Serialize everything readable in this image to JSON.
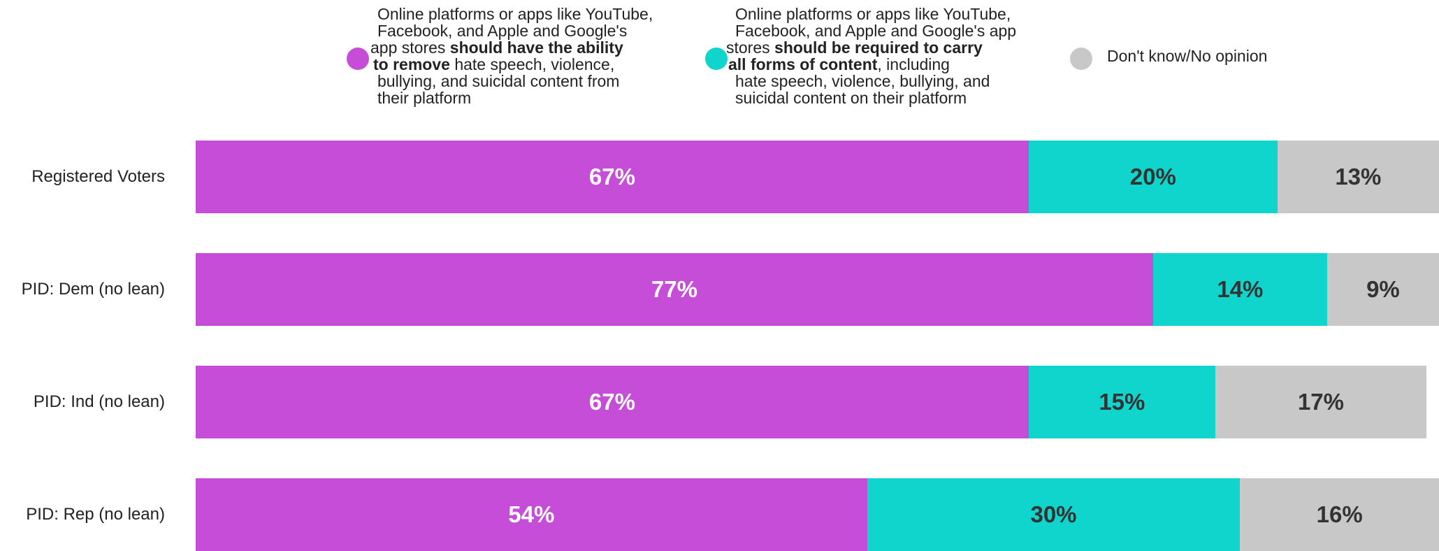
{
  "colors": {
    "remove": "#C54DD8",
    "carry": "#0FD5CC",
    "dk": "#C8C8C8"
  },
  "legend": {
    "remove": {
      "lines": [
        {
          "pre": "Online platforms or apps like YouTube,",
          "bold": "",
          "post": ""
        },
        {
          "pre": "Facebook, and Apple and Google's",
          "bold": "",
          "post": ""
        },
        {
          "pre": "app stores ",
          "bold": "should have the ability",
          "post": ""
        },
        {
          "pre": "",
          "bold": "to remove",
          "post": " hate speech, violence,"
        },
        {
          "pre": "bullying, and suicidal content from",
          "bold": "",
          "post": ""
        },
        {
          "pre": "their platform",
          "bold": "",
          "post": ""
        }
      ]
    },
    "carry": {
      "lines": [
        {
          "pre": "Online platforms or apps like YouTube,",
          "bold": "",
          "post": ""
        },
        {
          "pre": "Facebook, and Apple and Google's app",
          "bold": "",
          "post": ""
        },
        {
          "pre": "stores ",
          "bold": "should be required to carry",
          "post": ""
        },
        {
          "pre": "",
          "bold": "all forms of content",
          "post": ", including"
        },
        {
          "pre": "hate speech, violence, bullying, and",
          "bold": "",
          "post": ""
        },
        {
          "pre": "suicidal content on their platform",
          "bold": "",
          "post": ""
        }
      ]
    },
    "dk": {
      "lines": [
        {
          "pre": "Don't know/No opinion",
          "bold": "",
          "post": ""
        }
      ]
    }
  },
  "chart_data": {
    "type": "bar",
    "orientation": "horizontal",
    "stacked": true,
    "categories": [
      "Registered Voters",
      "PID: Dem (no lean)",
      "PID: Ind (no lean)",
      "PID: Rep (no lean)"
    ],
    "series": [
      {
        "key": "remove",
        "values": [
          67,
          77,
          67,
          54
        ]
      },
      {
        "key": "carry",
        "values": [
          20,
          14,
          15,
          30
        ]
      },
      {
        "key": "dk",
        "name": "Don't know/No opinion",
        "values": [
          13,
          9,
          17,
          16
        ]
      }
    ],
    "value_labels": [
      [
        "67%",
        "20%",
        "13%"
      ],
      [
        "77%",
        "14%",
        "9%"
      ],
      [
        "67%",
        "15%",
        "17%"
      ],
      [
        "54%",
        "30%",
        "16%"
      ]
    ],
    "xlim": [
      0,
      100
    ],
    "legend_position": "top"
  }
}
